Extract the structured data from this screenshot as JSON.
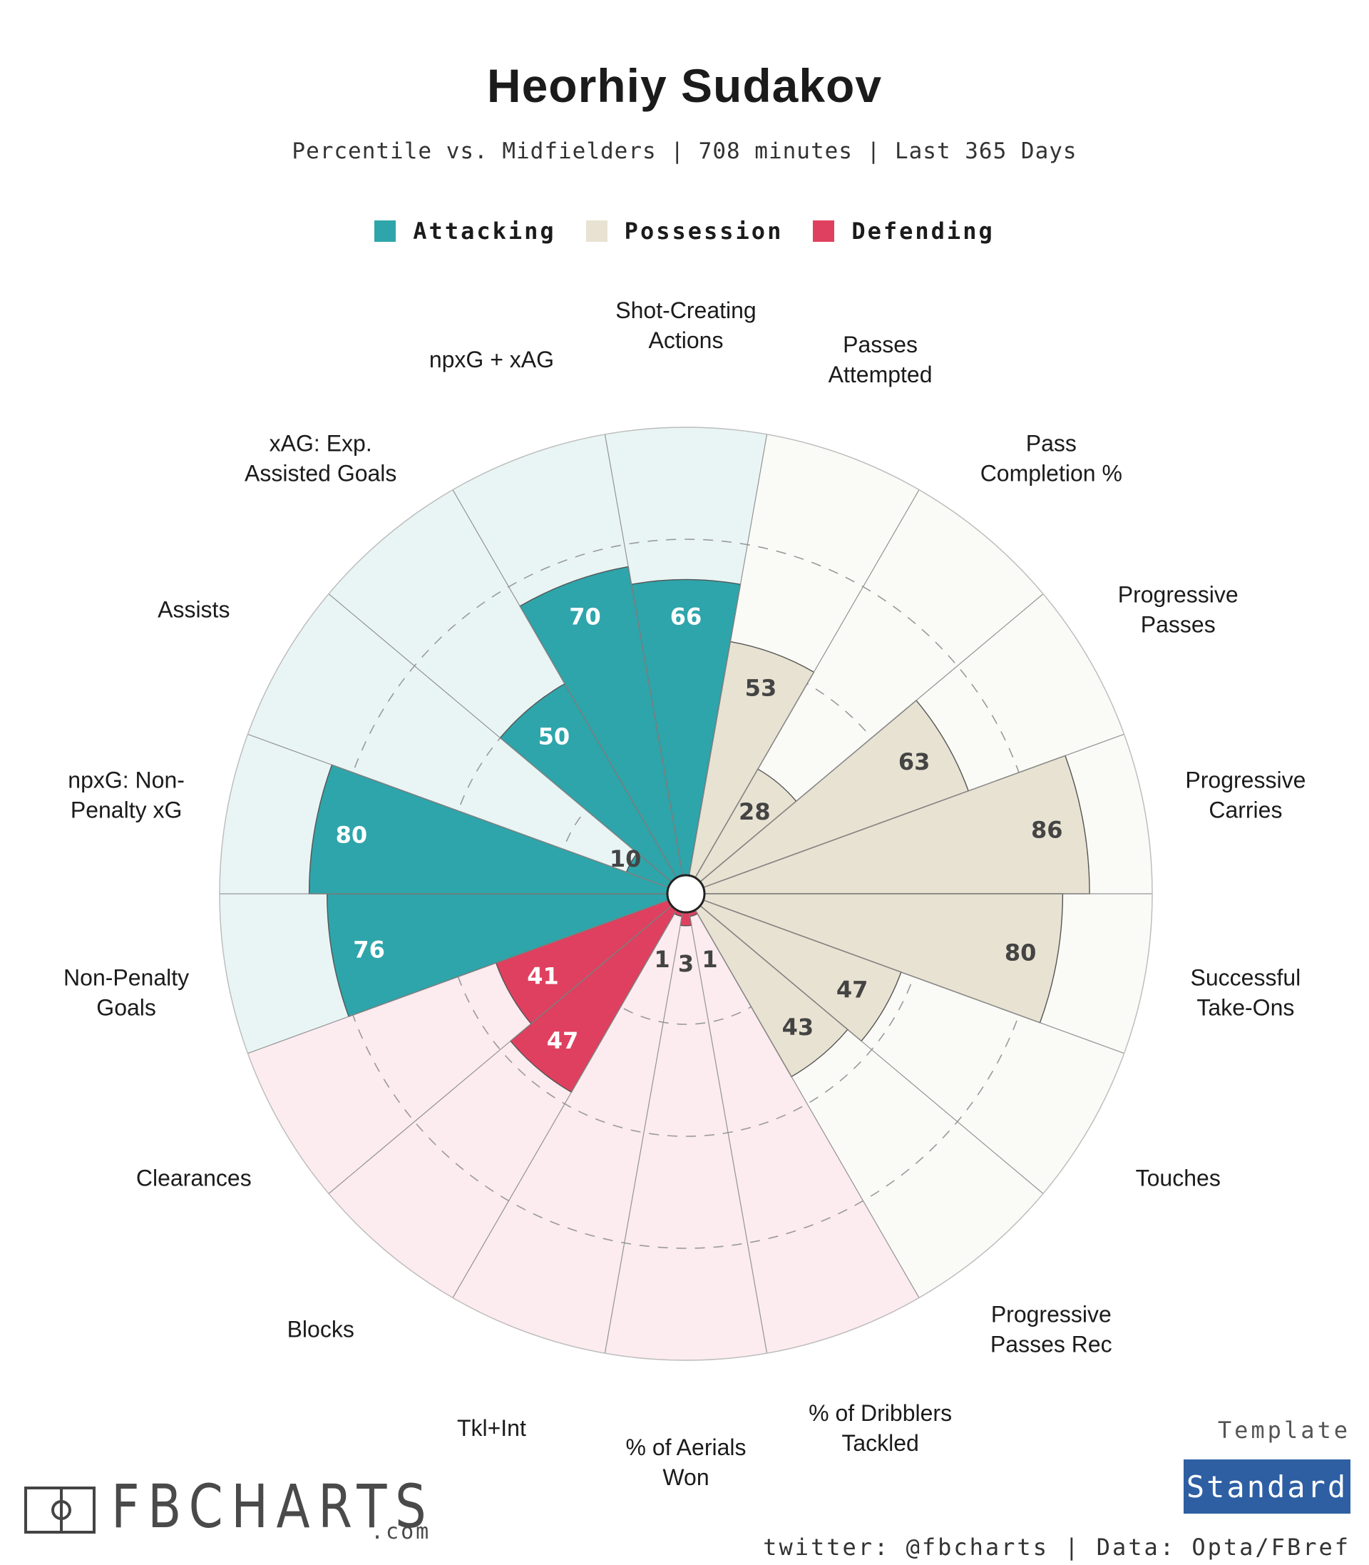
{
  "title": "Heorhiy Sudakov",
  "subtitle": "Percentile vs. Midfielders | 708 minutes | Last 365 Days",
  "legend": [
    {
      "label": "Attacking",
      "color": "#2ea5ab"
    },
    {
      "label": "Possession",
      "color": "#e8e2d2"
    },
    {
      "label": "Defending",
      "color": "#e0405f"
    }
  ],
  "chart_data": {
    "type": "polar-bar",
    "scale": [
      0,
      100
    ],
    "gridlines": [
      25,
      50,
      75
    ],
    "groups": {
      "Attacking": {
        "bar": "#2ea5ab",
        "bg": "#e9f5f5"
      },
      "Possession": {
        "bar": "#e8e2d2",
        "bg": "#fafaf7"
      },
      "Defending": {
        "bar": "#e0405f",
        "bg": "#fcebef"
      }
    },
    "metrics": [
      {
        "label": "Shot-Creating\nActions",
        "value": 66,
        "group": "Attacking"
      },
      {
        "label": "Passes\nAttempted",
        "value": 53,
        "group": "Possession"
      },
      {
        "label": "Pass\nCompletion %",
        "value": 28,
        "group": "Possession"
      },
      {
        "label": "Progressive\nPasses",
        "value": 63,
        "group": "Possession"
      },
      {
        "label": "Progressive\nCarries",
        "value": 86,
        "group": "Possession"
      },
      {
        "label": "Successful\nTake-Ons",
        "value": 80,
        "group": "Possession"
      },
      {
        "label": "Touches",
        "value": 47,
        "group": "Possession"
      },
      {
        "label": "Progressive\nPasses Rec",
        "value": 43,
        "group": "Possession"
      },
      {
        "label": "% of Dribblers\nTackled",
        "value": 1,
        "group": "Defending"
      },
      {
        "label": "% of Aerials\nWon",
        "value": 3,
        "group": "Defending"
      },
      {
        "label": "Tkl+Int",
        "value": 1,
        "group": "Defending"
      },
      {
        "label": "Blocks",
        "value": 47,
        "group": "Defending"
      },
      {
        "label": "Clearances",
        "value": 41,
        "group": "Defending"
      },
      {
        "label": "Non-Penalty\nGoals",
        "value": 76,
        "group": "Attacking"
      },
      {
        "label": "npxG: Non-\nPenalty xG",
        "value": 80,
        "group": "Attacking"
      },
      {
        "label": "Assists",
        "value": 10,
        "group": "Attacking"
      },
      {
        "label": "xAG: Exp.\nAssisted Goals",
        "value": 50,
        "group": "Attacking"
      },
      {
        "label": "npxG + xAG",
        "value": 70,
        "group": "Attacking"
      }
    ]
  },
  "brand": {
    "name": "FBCHARTS",
    "suffix": ".com"
  },
  "template": {
    "label": "Template",
    "value": "Standard"
  },
  "credits": "twitter: @fbcharts | Data: Opta/FBref"
}
